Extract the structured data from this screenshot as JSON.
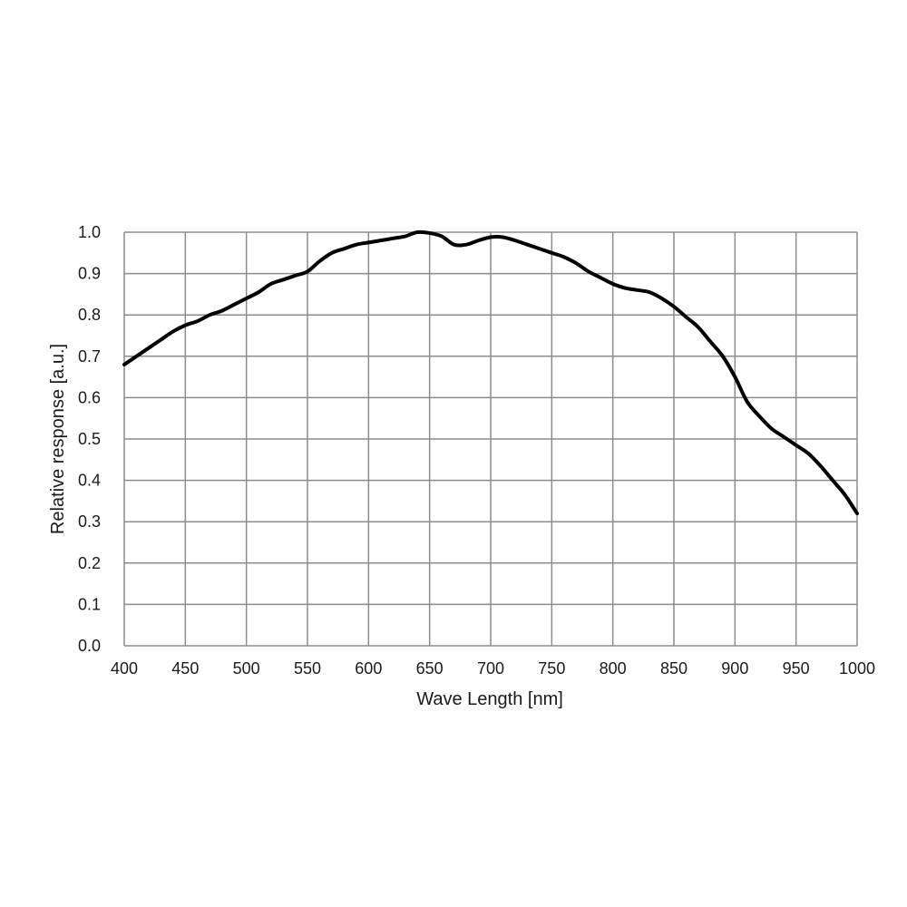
{
  "chart_data": {
    "type": "line",
    "title": "",
    "xlabel": "Wave Length [nm]",
    "ylabel": "Relative response [a.u.]",
    "xlim": [
      400,
      1000
    ],
    "ylim": [
      0,
      1
    ],
    "x_ticks": [
      "400",
      "450",
      "500",
      "550",
      "600",
      "650",
      "700",
      "750",
      "800",
      "850",
      "900",
      "950",
      "1000"
    ],
    "y_ticks": [
      "0.0",
      "0.1",
      "0.2",
      "0.3",
      "0.4",
      "0.5",
      "0.6",
      "0.7",
      "0.8",
      "0.9",
      "1.0"
    ],
    "grid": true,
    "legend": "none",
    "series": [
      {
        "color": "#000000",
        "x": [
          400,
          410,
          420,
          430,
          440,
          450,
          460,
          470,
          480,
          490,
          500,
          510,
          520,
          530,
          540,
          550,
          560,
          570,
          580,
          590,
          600,
          610,
          620,
          630,
          640,
          650,
          660,
          670,
          680,
          690,
          700,
          710,
          720,
          730,
          740,
          750,
          760,
          770,
          780,
          790,
          800,
          810,
          820,
          830,
          840,
          850,
          860,
          870,
          880,
          890,
          900,
          910,
          920,
          930,
          940,
          950,
          960,
          970,
          980,
          990,
          1000
        ],
        "y": [
          0.68,
          0.7,
          0.72,
          0.74,
          0.76,
          0.775,
          0.785,
          0.8,
          0.81,
          0.825,
          0.84,
          0.855,
          0.875,
          0.885,
          0.895,
          0.905,
          0.93,
          0.95,
          0.96,
          0.97,
          0.975,
          0.98,
          0.985,
          0.99,
          1.0,
          0.998,
          0.99,
          0.97,
          0.97,
          0.98,
          0.988,
          0.988,
          0.98,
          0.97,
          0.96,
          0.95,
          0.94,
          0.925,
          0.905,
          0.89,
          0.875,
          0.865,
          0.86,
          0.855,
          0.84,
          0.82,
          0.795,
          0.77,
          0.735,
          0.7,
          0.65,
          0.59,
          0.555,
          0.525,
          0.505,
          0.485,
          0.465,
          0.435,
          0.4,
          0.365,
          0.32
        ]
      }
    ]
  }
}
